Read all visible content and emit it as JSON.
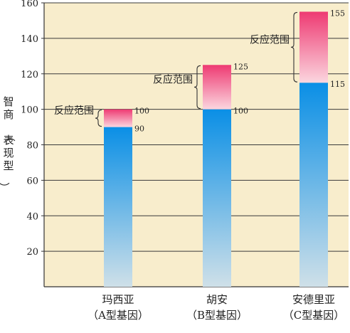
{
  "chart_data": {
    "type": "bar",
    "title": "",
    "ylabel": "智商（表现型）",
    "ylim": [
      0,
      160
    ],
    "yticks": [
      20,
      40,
      60,
      80,
      100,
      120,
      140,
      160
    ],
    "grid": true,
    "categories": [
      {
        "name": "玛西亚",
        "genotype": "（A型基因）"
      },
      {
        "name": "胡安",
        "genotype": "（B型基因）"
      },
      {
        "name": "安德里亚",
        "genotype": "（C型基因）"
      }
    ],
    "series": [
      {
        "name": "",
        "values": [
          90,
          100,
          115
        ]
      },
      {
        "name": "反应范围",
        "low": [
          90,
          100,
          115
        ],
        "high": [
          100,
          125,
          155
        ]
      }
    ],
    "annotation": "反应范围",
    "colors": {
      "background": "#f8edcc",
      "bar_top": "#0a8fe6",
      "bar_bottom": "#cfe0e8",
      "range_top": "#ee3a72",
      "range_bottom": "#fbd6df"
    }
  }
}
